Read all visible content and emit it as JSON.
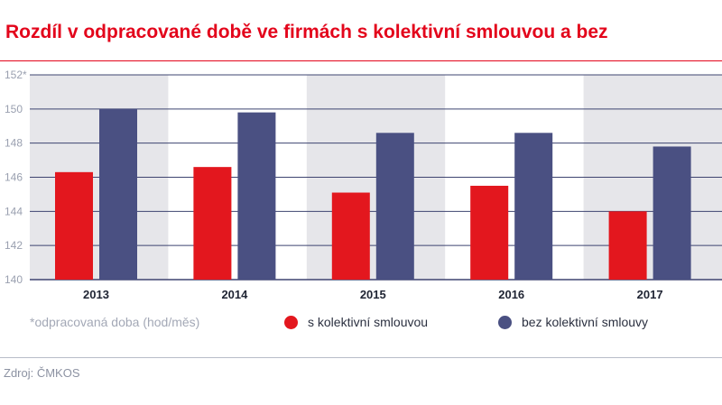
{
  "title": "Rozdíl v odpracované době ve firmách s kolektivní smlouvou a bez",
  "note": "*odpracovaná doba (hod/měs)",
  "source": "Zdroj: ČMKOS",
  "colors": {
    "accent": "#e3051b",
    "series1": "#e3171e",
    "series2": "#4a5082",
    "band": "#e6e6ea",
    "grid": "#3e4470"
  },
  "chart_data": {
    "type": "bar",
    "categories": [
      "2013",
      "2014",
      "2015",
      "2016",
      "2017"
    ],
    "series": [
      {
        "name": "s kolektivní smlouvou",
        "values": [
          146.3,
          146.6,
          145.1,
          145.5,
          144.0
        ]
      },
      {
        "name": "bez kolektivní smlouvy",
        "values": [
          150.0,
          149.8,
          148.6,
          148.6,
          147.8
        ]
      }
    ],
    "yticks": [
      "140",
      "142",
      "144",
      "146",
      "148",
      "150",
      "152*"
    ],
    "ylim": [
      140,
      152
    ],
    "grid": true,
    "legend": "bottom"
  }
}
